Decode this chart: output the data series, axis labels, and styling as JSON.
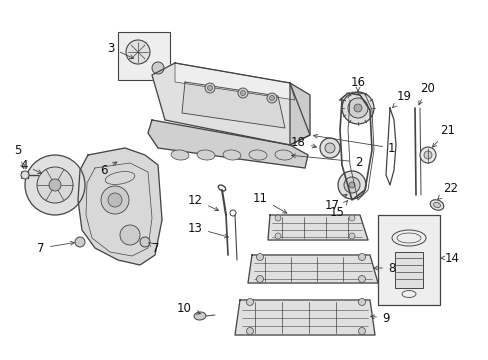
{
  "bg_color": "#ffffff",
  "fig_width": 4.89,
  "fig_height": 3.6,
  "dpi": 100,
  "line_color": "#444444",
  "fill_color": "#e8e8e8",
  "font_size": 8.5,
  "label_color": "#111111"
}
